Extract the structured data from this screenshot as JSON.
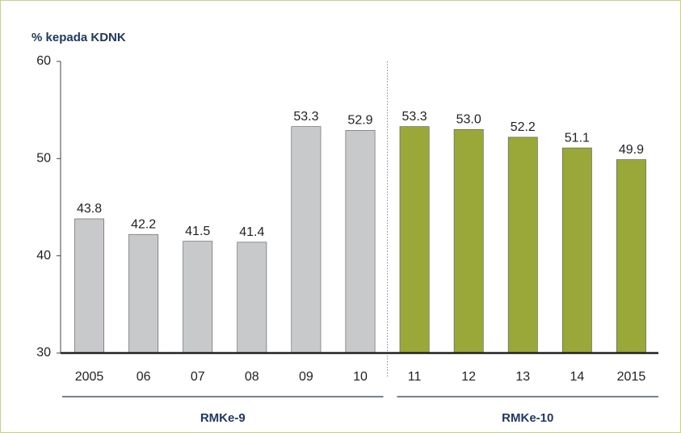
{
  "chart_data": {
    "type": "bar",
    "title": "% kepada KDNK",
    "categories": [
      "2005",
      "06",
      "07",
      "08",
      "09",
      "10",
      "11",
      "12",
      "13",
      "14",
      "2015"
    ],
    "series": [
      {
        "name": "RMKe-9",
        "color": "#c8c9ca",
        "values": [
          43.8,
          42.2,
          41.5,
          41.4,
          53.3,
          52.9,
          null,
          null,
          null,
          null,
          null
        ],
        "value_labels": [
          "43.8",
          "42.2",
          "41.5",
          "41.4",
          "53.3",
          "52.9",
          null,
          null,
          null,
          null,
          null
        ]
      },
      {
        "name": "RMKe-10",
        "color": "#9aa83a",
        "values": [
          null,
          null,
          null,
          null,
          null,
          null,
          53.3,
          53.0,
          52.2,
          51.1,
          49.9
        ],
        "value_labels": [
          null,
          null,
          null,
          null,
          null,
          null,
          "53.3",
          "53.0",
          "52.2",
          "51.1",
          "49.9"
        ]
      }
    ],
    "ylim": [
      30,
      60
    ],
    "yticks": [
      30,
      40,
      50,
      60
    ],
    "grid": false
  }
}
